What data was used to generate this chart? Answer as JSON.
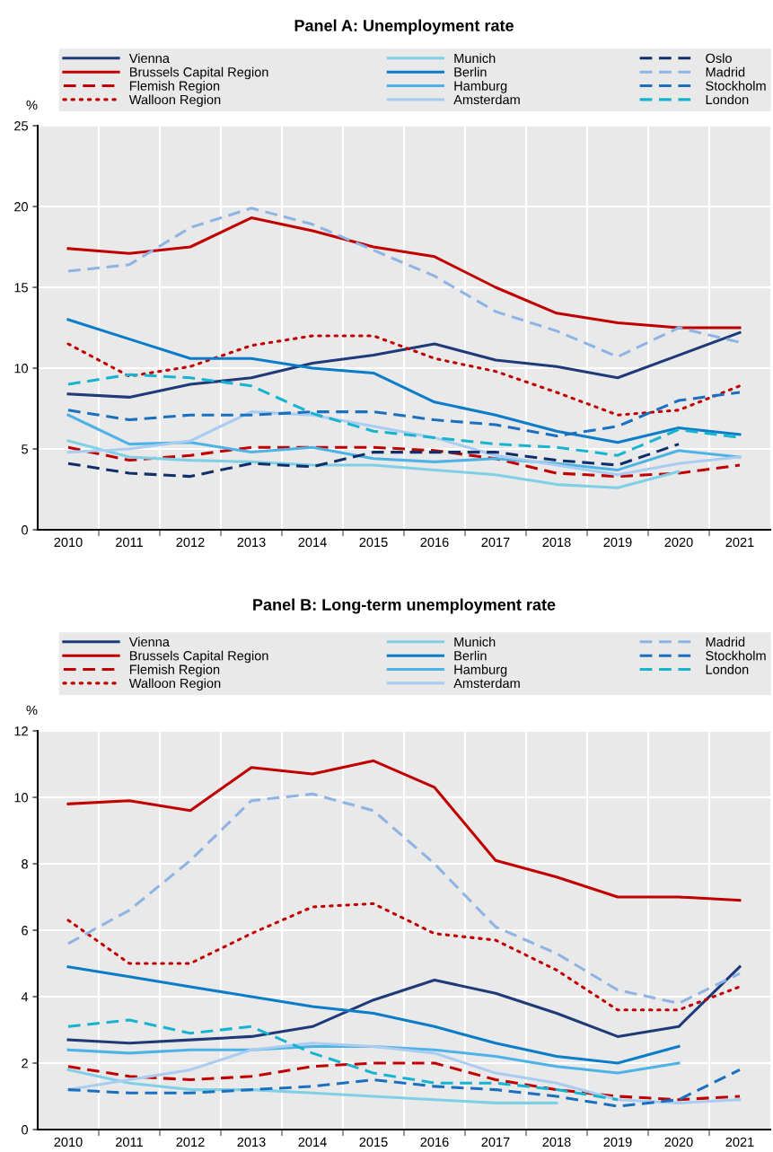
{
  "chart_data": [
    {
      "type": "line",
      "title": "Panel A: Unemployment rate",
      "ylabel": "%",
      "categories": [
        "2010",
        "2011",
        "2012",
        "2013",
        "2014",
        "2015",
        "2016",
        "2017",
        "2018",
        "2019",
        "2020",
        "2021"
      ],
      "ylim": [
        0,
        25
      ],
      "yticks": [
        0,
        5,
        10,
        15,
        20,
        25
      ],
      "grid": true,
      "legend": "top",
      "series": [
        {
          "name": "Vienna",
          "color": "#1f3a78",
          "line_style": "solid",
          "values": [
            8.4,
            8.2,
            9.0,
            9.4,
            10.3,
            10.8,
            11.5,
            10.5,
            10.1,
            9.4,
            10.8,
            12.2
          ]
        },
        {
          "name": "Brussels Capital Region",
          "color": "#c00000",
          "line_style": "solid",
          "values": [
            17.4,
            17.1,
            17.5,
            19.3,
            18.5,
            17.5,
            16.9,
            15.0,
            13.4,
            12.8,
            12.5,
            12.5
          ]
        },
        {
          "name": "Flemish Region",
          "color": "#c00000",
          "line_style": "dashed",
          "values": [
            5.1,
            4.3,
            4.6,
            5.1,
            5.1,
            5.1,
            4.9,
            4.4,
            3.5,
            3.3,
            3.5,
            4.0
          ]
        },
        {
          "name": "Walloon Region",
          "color": "#c00000",
          "line_style": "dotted",
          "values": [
            11.5,
            9.5,
            10.1,
            11.4,
            12.0,
            12.0,
            10.6,
            9.8,
            8.5,
            7.1,
            7.4,
            8.9
          ]
        },
        {
          "name": "Munich",
          "color": "#7fd0e6",
          "line_style": "solid",
          "values": [
            5.5,
            4.5,
            4.3,
            4.2,
            4.0,
            4.0,
            3.7,
            3.4,
            2.8,
            2.6,
            3.6,
            null
          ]
        },
        {
          "name": "Berlin",
          "color": "#0a7cc8",
          "line_style": "solid",
          "values": [
            13.0,
            11.8,
            10.6,
            10.6,
            10.0,
            9.7,
            7.9,
            7.1,
            6.1,
            5.4,
            6.3,
            5.9
          ]
        },
        {
          "name": "Hamburg",
          "color": "#4db3e6",
          "line_style": "solid",
          "values": [
            7.1,
            5.3,
            5.4,
            4.8,
            5.1,
            4.4,
            4.2,
            4.4,
            4.1,
            3.7,
            4.9,
            4.5
          ]
        },
        {
          "name": "Amsterdam",
          "color": "#a9cdf0",
          "line_style": "solid",
          "values": [
            4.8,
            5.0,
            5.5,
            7.3,
            7.1,
            6.4,
            5.7,
            4.6,
            4.0,
            3.4,
            4.1,
            4.5
          ]
        },
        {
          "name": "Oslo",
          "color": "#0f2f6b",
          "line_style": "dashed",
          "values": [
            4.1,
            3.5,
            3.3,
            4.1,
            3.9,
            4.8,
            4.8,
            4.8,
            4.3,
            4.0,
            5.3,
            null
          ]
        },
        {
          "name": "Madrid",
          "color": "#8eb4e3",
          "line_style": "dashed",
          "values": [
            16.0,
            16.4,
            18.7,
            19.9,
            18.9,
            17.3,
            15.7,
            13.5,
            12.3,
            10.7,
            12.5,
            11.6
          ]
        },
        {
          "name": "Stockholm",
          "color": "#1a6fbf",
          "line_style": "dashed",
          "values": [
            7.4,
            6.8,
            7.1,
            7.1,
            7.3,
            7.3,
            6.8,
            6.5,
            5.8,
            6.4,
            8.0,
            8.5
          ]
        },
        {
          "name": "London",
          "color": "#17b4d0",
          "line_style": "dashed",
          "values": [
            9.0,
            9.6,
            9.4,
            8.9,
            7.2,
            6.1,
            5.7,
            5.3,
            5.1,
            4.6,
            6.2,
            5.7
          ]
        }
      ]
    },
    {
      "type": "line",
      "title": "Panel B: Long-term unemployment rate",
      "ylabel": "%",
      "categories": [
        "2010",
        "2011",
        "2012",
        "2013",
        "2014",
        "2015",
        "2016",
        "2017",
        "2018",
        "2019",
        "2020",
        "2021"
      ],
      "ylim": [
        0,
        12
      ],
      "yticks": [
        0,
        2,
        4,
        6,
        8,
        10,
        12
      ],
      "grid": true,
      "legend": "top",
      "series": [
        {
          "name": "Vienna",
          "color": "#1f3a78",
          "line_style": "solid",
          "values": [
            2.7,
            2.6,
            2.7,
            2.8,
            3.1,
            3.9,
            4.5,
            4.1,
            3.5,
            2.8,
            3.1,
            4.9
          ]
        },
        {
          "name": "Brussels Capital Region",
          "color": "#c00000",
          "line_style": "solid",
          "values": [
            9.8,
            9.9,
            9.6,
            10.9,
            10.7,
            11.1,
            10.3,
            8.1,
            7.6,
            7.0,
            7.0,
            6.9
          ]
        },
        {
          "name": "Flemish Region",
          "color": "#c00000",
          "line_style": "dashed",
          "values": [
            1.9,
            1.6,
            1.5,
            1.6,
            1.9,
            2.0,
            2.0,
            1.5,
            1.2,
            1.0,
            0.9,
            1.0
          ]
        },
        {
          "name": "Walloon Region",
          "color": "#c00000",
          "line_style": "dotted",
          "values": [
            6.3,
            5.0,
            5.0,
            5.9,
            6.7,
            6.8,
            5.9,
            5.7,
            4.8,
            3.6,
            3.6,
            4.3
          ]
        },
        {
          "name": "Munich",
          "color": "#7fd0e6",
          "line_style": "solid",
          "values": [
            1.8,
            1.4,
            1.2,
            1.2,
            1.1,
            1.0,
            0.9,
            0.8,
            0.8,
            null,
            null,
            null
          ]
        },
        {
          "name": "Berlin",
          "color": "#0a7cc8",
          "line_style": "solid",
          "values": [
            4.9,
            4.6,
            4.3,
            4.0,
            3.7,
            3.5,
            3.1,
            2.6,
            2.2,
            2.0,
            2.5,
            null
          ]
        },
        {
          "name": "Hamburg",
          "color": "#4db3e6",
          "line_style": "solid",
          "values": [
            2.4,
            2.3,
            2.4,
            2.4,
            2.5,
            2.5,
            2.4,
            2.2,
            1.9,
            1.7,
            2.0,
            null
          ]
        },
        {
          "name": "Amsterdam",
          "color": "#a9cdf0",
          "line_style": "solid",
          "values": [
            1.2,
            1.5,
            1.8,
            2.4,
            2.6,
            2.5,
            2.3,
            1.7,
            1.4,
            0.9,
            0.8,
            0.9
          ]
        },
        {
          "name": "Madrid",
          "color": "#8eb4e3",
          "line_style": "dashed",
          "values": [
            5.6,
            6.6,
            8.1,
            9.9,
            10.1,
            9.6,
            8.0,
            6.1,
            5.3,
            4.2,
            3.8,
            4.7
          ]
        },
        {
          "name": "Stockholm",
          "color": "#1a6fbf",
          "line_style": "dashed",
          "values": [
            1.2,
            1.1,
            1.1,
            1.2,
            1.3,
            1.5,
            1.3,
            1.2,
            1.0,
            0.7,
            0.9,
            1.8
          ]
        },
        {
          "name": "London",
          "color": "#17b4d0",
          "line_style": "dashed",
          "values": [
            3.1,
            3.3,
            2.9,
            3.1,
            2.3,
            1.7,
            1.4,
            1.4,
            1.2,
            0.9,
            null,
            null
          ]
        }
      ]
    }
  ]
}
